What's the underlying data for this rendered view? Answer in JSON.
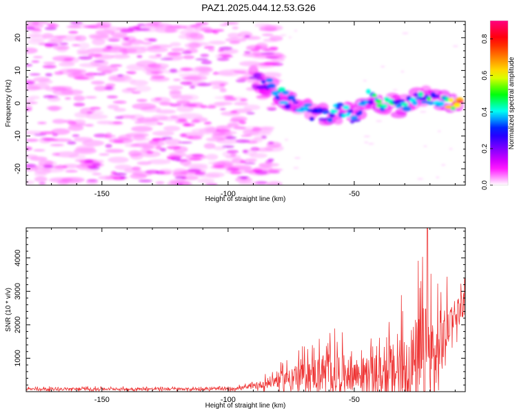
{
  "figure_title": "PAZ1.2025.044.12.53.G26",
  "chart_data": [
    {
      "type": "heatmap",
      "xlabel": "Height of straight line (km)",
      "ylabel": "Frequency (Hz)",
      "xlim": [
        -180,
        -6
      ],
      "ylim": [
        -25,
        25
      ],
      "x_ticks": [
        "-150",
        "-100",
        "-50"
      ],
      "y_ticks": [
        "-20",
        "-10",
        "0",
        "10",
        "20"
      ],
      "colorbar": {
        "label": "Normalized spectral amplitude",
        "range": [
          0,
          0.9
        ],
        "ticks": [
          "0.0",
          "0.2",
          "0.4",
          "0.6",
          "0.8"
        ],
        "colormap": [
          "#ffffff",
          "#ff00ff",
          "#8000ff",
          "#0000ff",
          "#00ffff",
          "#00ff00",
          "#ffff00",
          "#ff8000",
          "#ff0000",
          "#ff0080"
        ]
      },
      "description_of_structure": {
        "noise_region_x": [
          -180,
          -80
        ],
        "noise_level": 0.12,
        "signal_track": [
          {
            "x": -90,
            "freq": 7,
            "amp": 0.25
          },
          {
            "x": -85,
            "freq": 6,
            "amp": 0.3
          },
          {
            "x": -80,
            "freq": 3,
            "amp": 0.4
          },
          {
            "x": -75,
            "freq": 0,
            "amp": 0.4
          },
          {
            "x": -70,
            "freq": -2,
            "amp": 0.35
          },
          {
            "x": -62,
            "freq": -4,
            "amp": 0.35
          },
          {
            "x": -55,
            "freq": -2,
            "amp": 0.4
          },
          {
            "x": -48,
            "freq": -5,
            "amp": 0.35
          },
          {
            "x": -45,
            "freq": 2,
            "amp": 0.4
          },
          {
            "x": -38,
            "freq": 0,
            "amp": 0.45
          },
          {
            "x": -30,
            "freq": -1,
            "amp": 0.4
          },
          {
            "x": -22,
            "freq": 2,
            "amp": 0.45
          },
          {
            "x": -15,
            "freq": 0,
            "amp": 0.45
          },
          {
            "x": -8,
            "freq": 0.5,
            "amp": 0.85
          }
        ]
      }
    },
    {
      "type": "line",
      "xlabel": "Height of straight line (km)",
      "ylabel": "SNR (10 * v/v)",
      "xlim": [
        -180,
        -6
      ],
      "ylim": [
        0,
        4900
      ],
      "x_ticks": [
        "-150",
        "-100",
        "-50"
      ],
      "y_ticks": [
        "1000",
        "2000",
        "3000",
        "4000"
      ],
      "color": "#ee3333",
      "envelope": [
        {
          "x": -180,
          "base": 80,
          "amp": 80
        },
        {
          "x": -100,
          "base": 80,
          "amp": 80
        },
        {
          "x": -90,
          "base": 150,
          "amp": 150
        },
        {
          "x": -80,
          "base": 350,
          "amp": 500
        },
        {
          "x": -70,
          "base": 500,
          "amp": 900
        },
        {
          "x": -60,
          "base": 600,
          "amp": 1400
        },
        {
          "x": -50,
          "base": 550,
          "amp": 1100
        },
        {
          "x": -40,
          "base": 500,
          "amp": 1200
        },
        {
          "x": -30,
          "base": 700,
          "amp": 2400
        },
        {
          "x": -22,
          "base": 800,
          "amp": 4000
        },
        {
          "x": -18,
          "base": 900,
          "amp": 3200
        },
        {
          "x": -12,
          "base": 2200,
          "amp": 1100
        },
        {
          "x": -6,
          "base": 2700,
          "amp": 800
        }
      ],
      "peak": {
        "x": -21,
        "y": 4900
      }
    }
  ]
}
